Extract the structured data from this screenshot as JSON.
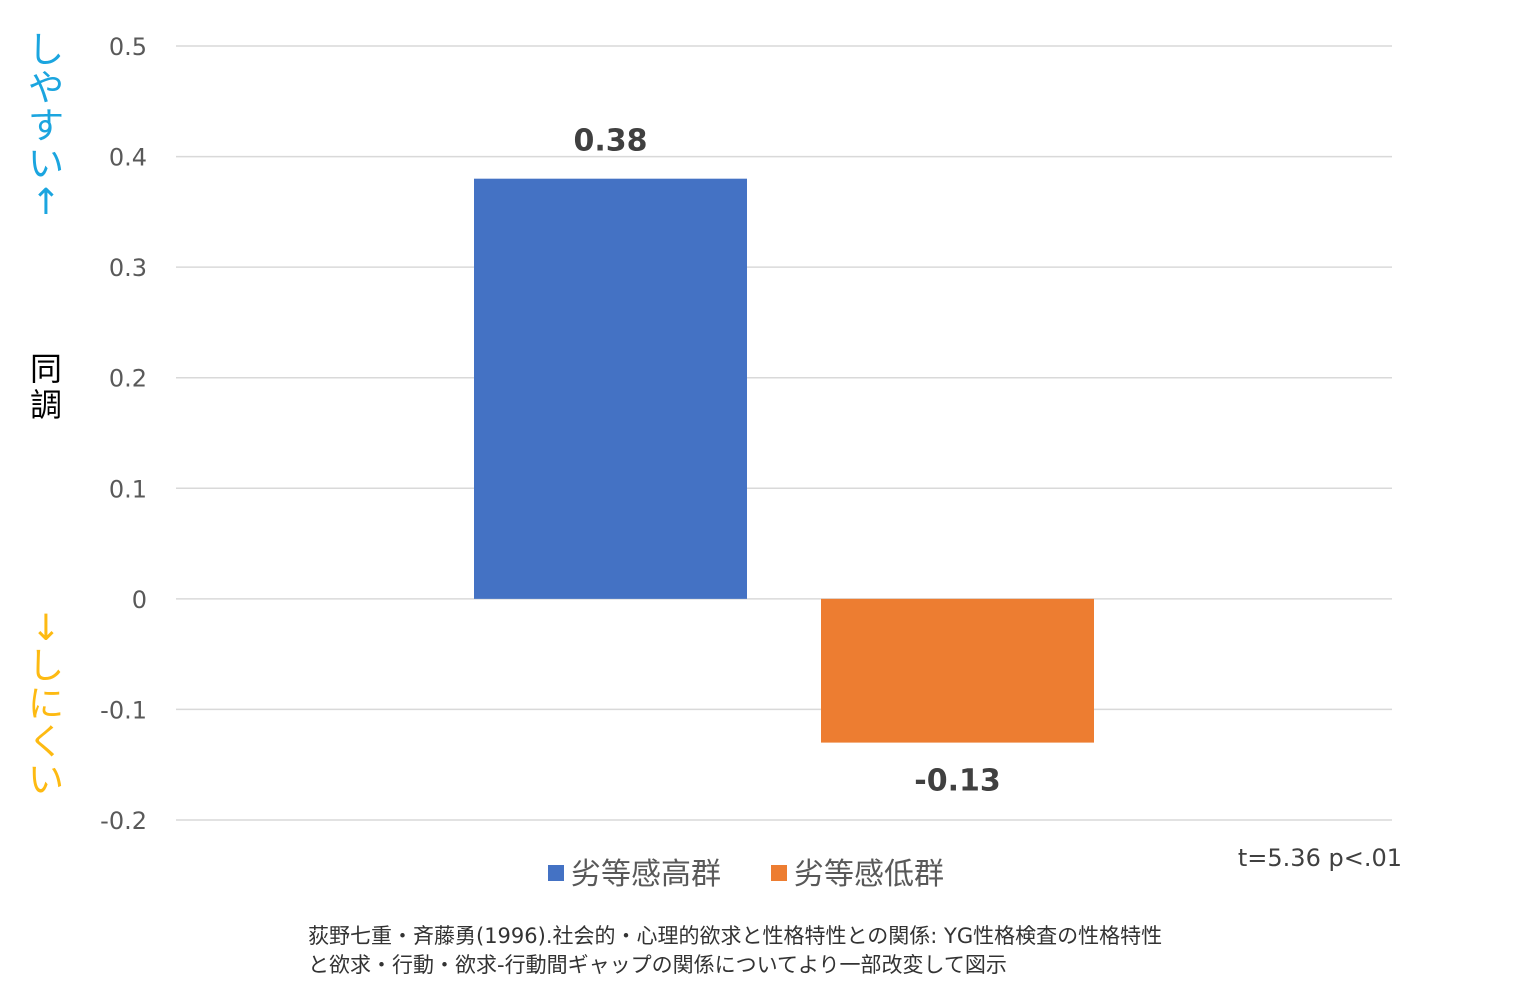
{
  "chart_data": {
    "type": "bar",
    "categories": [
      "劣等感高群",
      "劣等感低群"
    ],
    "values": [
      0.38,
      -0.13
    ],
    "value_labels": [
      "0.38",
      "-0.13"
    ],
    "colors": [
      "#4472C4",
      "#ED7D31"
    ],
    "ylim": [
      -0.2,
      0.5
    ],
    "yticks": [
      0.5,
      0.4,
      0.3,
      0.2,
      0.1,
      0,
      -0.1,
      -0.2
    ],
    "ytick_labels": [
      "0.5",
      "0.4",
      "0.3",
      "0.2",
      "0.1",
      "0",
      "-0.1",
      "-0.2"
    ],
    "grid": true,
    "legend": {
      "placement": "bottom",
      "entries": [
        "劣等感高群",
        "劣等感低群"
      ]
    },
    "ylabel": {
      "top": "しやすい↑",
      "middle": "同調",
      "bottom": "↓しにくい",
      "top_color": "#1BA5DF",
      "bottom_color": "#FDBA12"
    },
    "annotation": "t=5.36 p<.01"
  },
  "source": {
    "line1": "荻野七重・斉藤勇(1996).社会的・心理的欲求と性格特性との関係: YG性格検査の性格特性",
    "line2": "と欲求・行動・欲求-行動間ギャップの関係についてより一部改変して図示"
  }
}
